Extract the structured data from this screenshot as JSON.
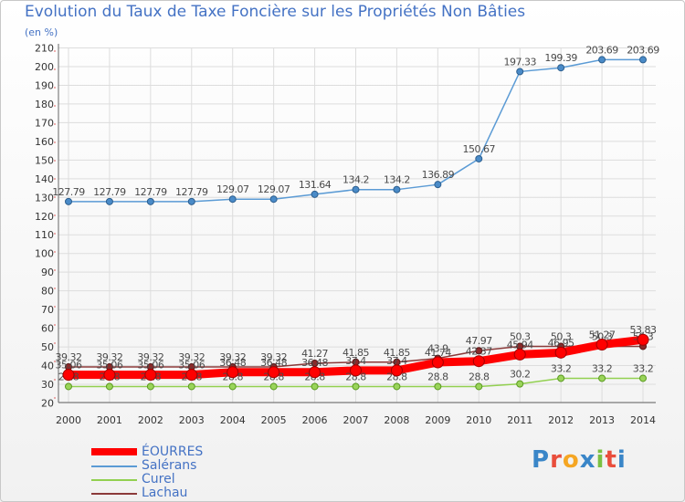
{
  "chart_data": {
    "type": "line",
    "title": "Evolution du Taux de Taxe Foncière sur les Propriétés Non Bâties",
    "ylabel": "(en %)",
    "xlabel": "",
    "x": [
      "2000",
      "2001",
      "2002",
      "2003",
      "2004",
      "2005",
      "2006",
      "2007",
      "2008",
      "2009",
      "2010",
      "2011",
      "2012",
      "2013",
      "2014"
    ],
    "ylim": [
      20,
      210
    ],
    "yticks": [
      20,
      30,
      40,
      50,
      60,
      70,
      80,
      90,
      100,
      110,
      120,
      130,
      140,
      150,
      160,
      170,
      180,
      190,
      200,
      210
    ],
    "grid": true,
    "series": [
      {
        "name": "ÉOURRES",
        "color": "#ff0000",
        "values": [
          35.06,
          35.06,
          35.06,
          35.06,
          36.48,
          36.48,
          36.48,
          37.4,
          37.4,
          41.74,
          42.37,
          45.94,
          46.95,
          51.27,
          53.83
        ],
        "labels": [
          "35.06",
          "35.06",
          "35.06",
          "35.06",
          "36.48",
          "36.48",
          "36.48",
          "37.4",
          "37.4",
          "41.74",
          "42.37",
          "45.94",
          "46.95",
          "51.27",
          "53.83"
        ]
      },
      {
        "name": "Salérans",
        "color": "#5b9bd5",
        "values": [
          127.79,
          127.79,
          127.79,
          127.79,
          129.07,
          129.07,
          131.64,
          134.2,
          134.2,
          136.89,
          150.67,
          197.33,
          199.39,
          203.69,
          203.69
        ],
        "labels": [
          "127.79",
          "127.79",
          "127.79",
          "127.79",
          "129.07",
          "129.07",
          "131.64",
          "134.2",
          "134.2",
          "136.89",
          "150.67",
          "197.33",
          "199.39",
          "203.69",
          "203.69"
        ]
      },
      {
        "name": "Curel",
        "color": "#92d050",
        "values": [
          28.8,
          28.8,
          28.8,
          28.8,
          28.8,
          28.8,
          28.8,
          28.8,
          28.8,
          28.8,
          28.8,
          30.2,
          33.2,
          33.2,
          33.2
        ],
        "labels": [
          "28.8",
          "28.8",
          "28.8",
          "28.8",
          "28.8",
          "28.8",
          "28.8",
          "28.8",
          "28.8",
          "28.8",
          "28.8",
          "30.2",
          "33.2",
          "33.2",
          "33.2"
        ]
      },
      {
        "name": "Lachau",
        "color": "#8b3a3a",
        "values": [
          39.32,
          39.32,
          39.32,
          39.32,
          39.32,
          39.32,
          41.27,
          41.85,
          41.85,
          43.9,
          47.97,
          50.3,
          50.3,
          50.3,
          50.3
        ],
        "labels": [
          "39.32",
          "39.32",
          "39.32",
          "39.32",
          "39.32",
          "39.32",
          "41.27",
          "41.85",
          "41.85",
          "43.9",
          "47.97",
          "50.3",
          "50.3",
          "50.3",
          "50.3"
        ]
      }
    ]
  },
  "legend": [
    "ÉOURRES",
    "Salérans",
    "Curel",
    "Lachau"
  ],
  "logo": [
    "P",
    "r",
    "o",
    "x",
    "i",
    "t",
    "i"
  ]
}
